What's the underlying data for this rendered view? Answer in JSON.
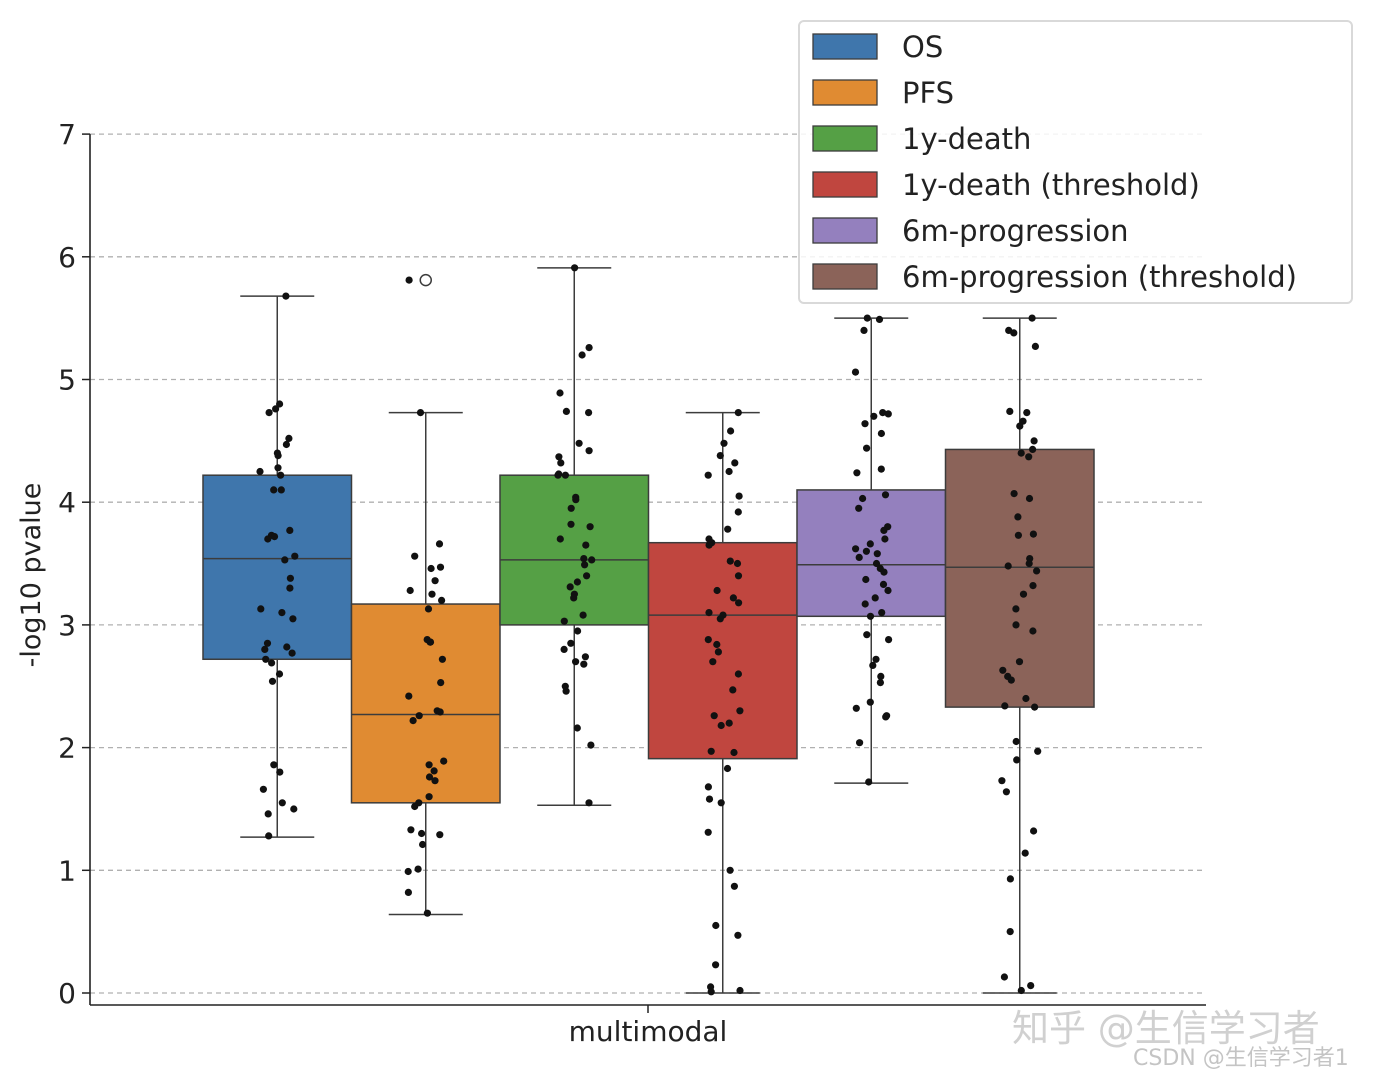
{
  "chart_data": {
    "type": "box",
    "xlabel": "",
    "ylabel": "-log10 pvalue",
    "ylim": [
      -0.1,
      7.0
    ],
    "yticks": [
      0,
      1,
      2,
      3,
      4,
      5,
      6,
      7
    ],
    "grid": "horizontal-dashed",
    "legend_position": "top-right",
    "group": "multimodal",
    "series": [
      {
        "name": "OS",
        "color": "#3f76ac",
        "q1": 2.72,
        "median": 3.54,
        "q3": 4.22,
        "whisker_low": 1.27,
        "whisker_high": 5.68,
        "outliers": [],
        "points": [
          5.68,
          4.8,
          4.76,
          4.73,
          4.52,
          4.47,
          4.4,
          4.38,
          4.28,
          4.25,
          4.22,
          4.1,
          4.1,
          3.77,
          3.73,
          3.72,
          3.7,
          3.56,
          3.53,
          3.38,
          3.3,
          3.13,
          3.1,
          3.05,
          2.85,
          2.82,
          2.8,
          2.77,
          2.72,
          2.69,
          2.6,
          2.54,
          1.86,
          1.8,
          1.66,
          1.55,
          1.5,
          1.46,
          1.28
        ]
      },
      {
        "name": "PFS",
        "color": "#e08b32",
        "q1": 1.55,
        "median": 2.27,
        "q3": 3.17,
        "whisker_low": 0.64,
        "whisker_high": 4.73,
        "outliers": [
          5.81
        ],
        "points": [
          5.81,
          4.73,
          3.66,
          3.56,
          3.47,
          3.46,
          3.36,
          3.28,
          3.25,
          3.2,
          3.13,
          2.88,
          2.86,
          2.86,
          2.72,
          2.53,
          2.42,
          2.3,
          2.29,
          2.26,
          2.22,
          1.89,
          1.86,
          1.81,
          1.76,
          1.73,
          1.6,
          1.55,
          1.52,
          1.33,
          1.3,
          1.29,
          1.21,
          1.01,
          0.99,
          0.82,
          0.65
        ]
      },
      {
        "name": "1y-death",
        "color": "#55a045",
        "q1": 3.0,
        "median": 3.53,
        "q3": 4.22,
        "whisker_low": 1.53,
        "whisker_high": 5.91,
        "outliers": [],
        "points": [
          5.91,
          5.26,
          5.2,
          4.89,
          4.74,
          4.73,
          4.48,
          4.42,
          4.37,
          4.32,
          4.23,
          4.22,
          4.22,
          4.04,
          4.02,
          3.95,
          3.82,
          3.8,
          3.7,
          3.65,
          3.54,
          3.53,
          3.49,
          3.4,
          3.35,
          3.31,
          3.25,
          3.22,
          3.08,
          3.03,
          2.95,
          2.85,
          2.8,
          2.74,
          2.7,
          2.68,
          2.5,
          2.46,
          2.16,
          2.02,
          1.55
        ]
      },
      {
        "name": "1y-death (threshold)",
        "color": "#c0463f",
        "q1": 1.91,
        "median": 3.08,
        "q3": 3.67,
        "whisker_low": 0.0,
        "whisker_high": 4.73,
        "outliers": [],
        "points": [
          4.73,
          4.58,
          4.48,
          4.38,
          4.32,
          4.25,
          4.22,
          4.05,
          3.92,
          3.78,
          3.7,
          3.67,
          3.65,
          3.52,
          3.5,
          3.4,
          3.28,
          3.22,
          3.18,
          3.1,
          3.08,
          3.05,
          2.88,
          2.84,
          2.78,
          2.7,
          2.6,
          2.47,
          2.3,
          2.26,
          2.2,
          2.18,
          1.97,
          1.96,
          1.83,
          1.68,
          1.58,
          1.55,
          1.31,
          1.0,
          0.87,
          0.55,
          0.47,
          0.23,
          0.05,
          0.02,
          0.01
        ]
      },
      {
        "name": "6m-progression",
        "color": "#9480be",
        "q1": 3.07,
        "median": 3.49,
        "q3": 4.1,
        "whisker_low": 1.71,
        "whisker_high": 5.5,
        "outliers": [],
        "points": [
          5.5,
          5.49,
          5.4,
          5.06,
          4.73,
          4.72,
          4.7,
          4.64,
          4.56,
          4.44,
          4.27,
          4.24,
          4.06,
          4.03,
          3.95,
          3.8,
          3.77,
          3.7,
          3.66,
          3.62,
          3.6,
          3.58,
          3.55,
          3.5,
          3.46,
          3.43,
          3.37,
          3.33,
          3.28,
          3.22,
          3.17,
          3.1,
          3.07,
          2.92,
          2.88,
          2.72,
          2.67,
          2.58,
          2.53,
          2.37,
          2.32,
          2.26,
          2.25,
          2.04,
          1.72
        ]
      },
      {
        "name": "6m-progression (threshold)",
        "color": "#8b6359",
        "q1": 2.33,
        "median": 3.47,
        "q3": 4.43,
        "whisker_low": 0.0,
        "whisker_high": 5.5,
        "outliers": [],
        "points": [
          5.5,
          5.4,
          5.38,
          5.27,
          4.74,
          4.73,
          4.66,
          4.62,
          4.5,
          4.43,
          4.4,
          4.37,
          4.07,
          4.03,
          3.88,
          3.74,
          3.73,
          3.54,
          3.5,
          3.48,
          3.44,
          3.32,
          3.25,
          3.13,
          3.0,
          2.95,
          2.7,
          2.63,
          2.58,
          2.55,
          2.4,
          2.34,
          2.33,
          2.05,
          1.97,
          1.9,
          1.73,
          1.64,
          1.32,
          1.14,
          0.93,
          0.5,
          0.13,
          0.06,
          0.02
        ]
      }
    ]
  },
  "watermark": {
    "zhihu": "知乎 @生信学习者",
    "csdn": "CSDN @生信学习者1"
  }
}
